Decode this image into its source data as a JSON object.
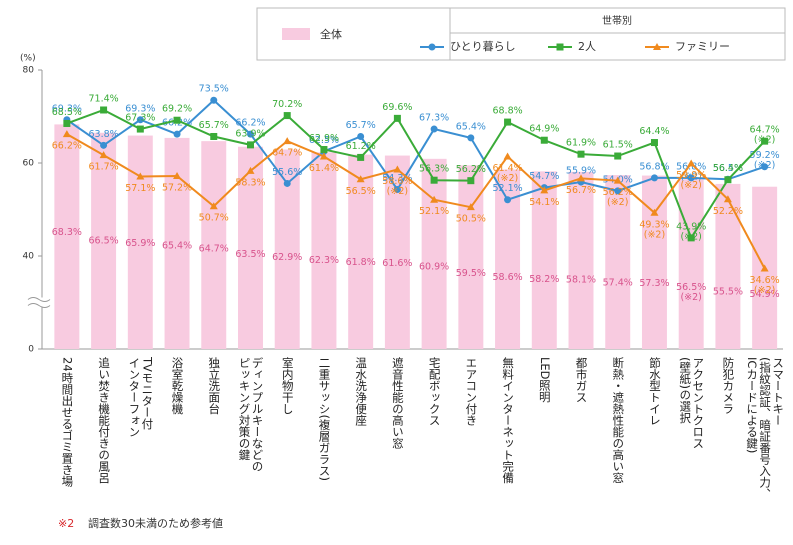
{
  "chart_data": {
    "type": "bar-line",
    "y_label": "(%)",
    "categories": [
      [
        "24時間出せるゴミ置き場"
      ],
      [
        "追い焚き機能付きの風呂"
      ],
      [
        "TVモニター付",
        "インターフォン"
      ],
      [
        "浴室乾燥機"
      ],
      [
        "独立洗面台"
      ],
      [
        "ディンプルキーなどの",
        "ピッキング対策の鍵"
      ],
      [
        "室内物干し"
      ],
      [
        "二重サッシ(複層ガラス)"
      ],
      [
        "温水洗浄便座"
      ],
      [
        "遮音性能の高い窓"
      ],
      [
        "宅配ボックス"
      ],
      [
        "エアコン付き"
      ],
      [
        "無料インターネット完備"
      ],
      [
        "LED照明"
      ],
      [
        "都市ガス"
      ],
      [
        "断熱・遮熱性能の高い窓"
      ],
      [
        "節水型トイレ"
      ],
      [
        "アクセントクロス",
        "(壁紙)の選択"
      ],
      [
        "防犯カメラ"
      ],
      [
        "スマートキー",
        "(指紋認証、暗証番号入力、",
        "ICカードによる鍵)"
      ]
    ],
    "bar_series": {
      "name": "全体",
      "color": "#f8cbe0",
      "label_color": "#d8538c",
      "values": [
        68.3,
        66.5,
        65.9,
        65.4,
        64.7,
        63.5,
        62.9,
        62.3,
        61.8,
        61.6,
        60.9,
        59.5,
        58.6,
        58.2,
        58.1,
        57.4,
        57.3,
        56.5,
        55.5,
        54.9
      ],
      "value_labels": [
        "68.3%",
        "66.5%",
        "65.9%",
        "65.4%",
        "64.7%",
        "63.5%",
        "62.9%",
        "62.3%",
        "61.8%",
        "61.6%",
        "60.9%",
        "59.5%",
        "58.6%",
        "58.2%",
        "58.1%",
        "57.4%",
        "57.3%",
        "56.5%",
        "55.5%",
        "54.9%"
      ],
      "value_notes": [
        null,
        null,
        null,
        null,
        null,
        null,
        null,
        null,
        null,
        null,
        null,
        null,
        null,
        null,
        null,
        null,
        null,
        "(※2)",
        null,
        null
      ]
    },
    "legend_group_title": "世帯別",
    "series": [
      {
        "name": "ひとり暮らし",
        "color": "#3a8fd2",
        "marker": "circle",
        "values": [
          69.3,
          63.8,
          69.3,
          66.2,
          73.5,
          66.2,
          55.6,
          62.5,
          65.7,
          54.3,
          67.3,
          65.4,
          52.1,
          54.7,
          55.9,
          54.0,
          56.8,
          56.8,
          56.5,
          59.2
        ],
        "value_labels": [
          "69.3%",
          "63.8%",
          "69.3%",
          "66.2%",
          "73.5%",
          "66.2%",
          "55.6%",
          "62.5%",
          "65.7%",
          "54.3%",
          "67.3%",
          "65.4%",
          "52.1%",
          "54.7%",
          "55.9%",
          "54.0%",
          "56.8%",
          "56.8%",
          "56.5%",
          "59.2%"
        ],
        "value_notes": [
          null,
          null,
          null,
          null,
          null,
          null,
          null,
          null,
          null,
          null,
          null,
          null,
          null,
          null,
          null,
          null,
          null,
          "(※2)",
          null,
          "(※2)"
        ]
      },
      {
        "name": "2人",
        "color": "#3aab38",
        "marker": "square",
        "values": [
          68.5,
          71.4,
          67.3,
          69.2,
          65.7,
          63.9,
          70.2,
          62.9,
          61.2,
          69.6,
          56.3,
          56.2,
          68.8,
          64.9,
          61.9,
          61.5,
          64.4,
          43.9,
          56.4,
          64.7
        ],
        "value_labels": [
          "68.5%",
          "71.4%",
          "67.3%",
          "69.2%",
          "65.7%",
          "63.9%",
          "70.2%",
          "62.9%",
          "61.2%",
          "69.6%",
          "56.3%",
          "56.2%",
          "68.8%",
          "64.9%",
          "61.9%",
          "61.5%",
          "64.4%",
          "43.9%",
          "56.4%",
          "64.7%"
        ],
        "value_notes": [
          null,
          null,
          null,
          null,
          null,
          null,
          null,
          null,
          null,
          null,
          null,
          null,
          null,
          null,
          null,
          null,
          null,
          "(※2)",
          null,
          "(※2)"
        ]
      },
      {
        "name": "ファミリー",
        "color": "#f08a1e",
        "marker": "triangle",
        "values": [
          66.2,
          61.7,
          57.1,
          57.2,
          50.7,
          58.3,
          64.7,
          61.4,
          56.5,
          58.6,
          52.1,
          50.5,
          61.4,
          54.1,
          56.7,
          56.2,
          49.3,
          59.9,
          52.2,
          34.6
        ],
        "value_labels": [
          "66.2%",
          "61.7%",
          "57.1%",
          "57.2%",
          "50.7%",
          "58.3%",
          "64.7%",
          "61.4%",
          "56.5%",
          "58.6%",
          "52.1%",
          "50.5%",
          "61.4%",
          "54.1%",
          "56.7%",
          "56.2%",
          "49.3%",
          "59.9%",
          "52.2%",
          "34.6%"
        ],
        "value_notes": [
          null,
          null,
          null,
          null,
          null,
          null,
          null,
          null,
          null,
          "(※2)",
          null,
          null,
          "(※2)",
          null,
          null,
          "(※2)",
          "(※2)",
          "(※2)",
          null,
          "(※2)"
        ]
      }
    ],
    "ylim": [
      0,
      80
    ],
    "yticks": [
      0,
      40,
      60,
      80
    ],
    "y_break": [
      0,
      40
    ],
    "grid": false,
    "footnote": {
      "mark": "※2",
      "text": "調査数30未満のため参考値"
    }
  }
}
